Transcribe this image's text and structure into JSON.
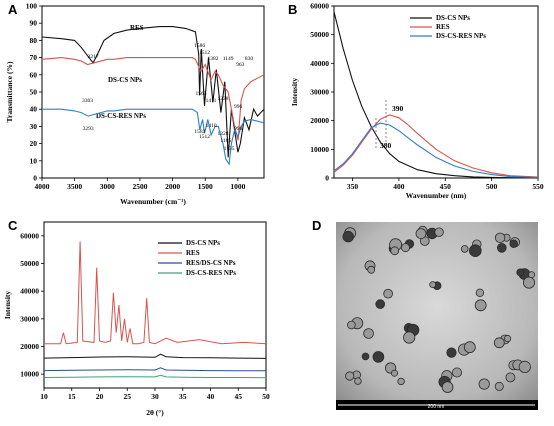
{
  "panels": {
    "A": {
      "letter": "A",
      "xlabel": "Wavenumber (cm⁻¹)",
      "ylabel": "Transmittance (%)",
      "xticks": [
        "4000",
        "3500",
        "3000",
        "2500",
        "2000",
        "1500",
        "1000"
      ],
      "yticks": [
        "0",
        "10",
        "20",
        "30",
        "40",
        "50",
        "60",
        "70",
        "80",
        "90",
        "100"
      ],
      "series_labels": [
        "RES",
        "DS-CS NPs",
        "DS-CS-RES NPs"
      ],
      "peak_labels": [
        "3217",
        "1586",
        "1512",
        "1382",
        "1149",
        "963",
        "830",
        "3303",
        "1565",
        "1411",
        "1228",
        "996",
        "3293",
        "1583",
        "1512",
        "1410",
        "1228",
        "1135",
        "1185",
        "996"
      ]
    },
    "B": {
      "letter": "B",
      "xlabel": "Wavenumber (nm)",
      "ylabel": "Intensity",
      "xticks": [
        "350",
        "400",
        "450",
        "500",
        "550"
      ],
      "yticks": [
        "0",
        "10000",
        "20000",
        "30000",
        "40000",
        "50000",
        "60000"
      ],
      "legend": [
        "DS-CS NPs",
        "RES",
        "DS-CS-RES NPs"
      ],
      "annotations": [
        "390",
        "380"
      ]
    },
    "C": {
      "letter": "C",
      "xlabel": "2θ (°)",
      "ylabel": "Intensity",
      "xticks": [
        "10",
        "15",
        "20",
        "25",
        "30",
        "35",
        "40",
        "45",
        "50"
      ],
      "yticks": [
        "10000",
        "20000",
        "30000",
        "40000",
        "50000",
        "60000"
      ],
      "legend": [
        "DS-CS NPs",
        "RES",
        "RES/DS-CS NPs",
        "DS-CS-RES NPs"
      ]
    },
    "D": {
      "letter": "D",
      "scale_bar": "200 nm"
    }
  },
  "colors": {
    "black": "#111111",
    "red": "#d9534f",
    "blue": "#2f7fc1",
    "green": "#3aa37a",
    "navy": "#2a4f8f"
  },
  "chart_data": [
    {
      "type": "line",
      "title": "",
      "xlabel": "Wavenumber (cm⁻¹)",
      "ylabel": "Transmittance (%)",
      "xlim": [
        4000,
        600
      ],
      "ylim": [
        0,
        100
      ],
      "series": [
        {
          "name": "RES",
          "x": [
            4000,
            3700,
            3500,
            3400,
            3300,
            3217,
            3150,
            3050,
            2900,
            2700,
            2500,
            2200,
            2000,
            1800,
            1650,
            1600,
            1586,
            1560,
            1512,
            1450,
            1382,
            1330,
            1260,
            1200,
            1149,
            1100,
            1000,
            963,
            900,
            830,
            760,
            700,
            650,
            600
          ],
          "y": [
            82,
            81,
            80,
            76,
            71,
            67,
            72,
            80,
            84,
            86,
            87,
            88,
            88,
            87,
            85,
            72,
            48,
            75,
            42,
            70,
            44,
            63,
            38,
            56,
            12,
            40,
            15,
            20,
            35,
            28,
            40,
            36,
            38,
            40
          ]
        },
        {
          "name": "DS-CS NPs",
          "x": [
            4000,
            3700,
            3500,
            3400,
            3303,
            3200,
            3000,
            2900,
            2700,
            2500,
            2200,
            2000,
            1800,
            1700,
            1650,
            1565,
            1500,
            1411,
            1350,
            1300,
            1228,
            1150,
            1100,
            1050,
            996,
            950,
            900,
            800,
            700,
            600
          ],
          "y": [
            69,
            70,
            69,
            68,
            66,
            67,
            69,
            69,
            70,
            70,
            70,
            70,
            70,
            70,
            69,
            62,
            66,
            57,
            62,
            60,
            54,
            50,
            40,
            30,
            22,
            45,
            52,
            56,
            58,
            60
          ]
        },
        {
          "name": "DS-CS-RES NPs",
          "x": [
            4000,
            3700,
            3500,
            3400,
            3293,
            3200,
            3000,
            2900,
            2700,
            2500,
            2200,
            2000,
            1800,
            1700,
            1620,
            1583,
            1540,
            1512,
            1460,
            1410,
            1350,
            1300,
            1228,
            1185,
            1135,
            1100,
            1050,
            996,
            950,
            900,
            800,
            700,
            600
          ],
          "y": [
            40,
            40,
            39,
            38,
            36,
            37,
            39,
            39,
            40,
            40,
            40,
            40,
            40,
            40,
            38,
            28,
            34,
            26,
            34,
            25,
            30,
            30,
            20,
            11,
            8,
            20,
            28,
            24,
            30,
            33,
            34,
            33,
            32
          ]
        }
      ]
    },
    {
      "type": "line",
      "title": "",
      "xlabel": "Wavenumber (nm)",
      "ylabel": "Intensity",
      "xlim": [
        330,
        550
      ],
      "ylim": [
        0,
        60000
      ],
      "legend": "top-right",
      "series": [
        {
          "name": "DS-CS NPs",
          "x": [
            330,
            340,
            350,
            360,
            370,
            380,
            390,
            400,
            420,
            440,
            460,
            480,
            500,
            520,
            550
          ],
          "y": [
            58000,
            45000,
            34000,
            25000,
            18000,
            12500,
            8500,
            5800,
            2900,
            1500,
            800,
            400,
            200,
            100,
            50
          ]
        },
        {
          "name": "RES",
          "x": [
            330,
            340,
            350,
            360,
            370,
            380,
            390,
            400,
            410,
            420,
            440,
            460,
            480,
            500,
            520,
            550
          ],
          "y": [
            2000,
            4500,
            8000,
            12500,
            17000,
            20500,
            22000,
            21000,
            18500,
            15500,
            10000,
            6000,
            3500,
            1800,
            800,
            300
          ]
        },
        {
          "name": "DS-CS-RES NPs",
          "x": [
            330,
            340,
            350,
            360,
            370,
            380,
            390,
            400,
            410,
            420,
            440,
            460,
            480,
            500,
            520,
            550
          ],
          "y": [
            2500,
            5000,
            8500,
            13000,
            17500,
            19200,
            18500,
            16500,
            14000,
            11500,
            7200,
            4200,
            2300,
            1200,
            500,
            200
          ]
        }
      ],
      "annotations": [
        {
          "text": "390",
          "x": 390
        },
        {
          "text": "380",
          "x": 380
        }
      ]
    },
    {
      "type": "line",
      "title": "",
      "xlabel": "2θ (°)",
      "ylabel": "Intensity",
      "xlim": [
        10,
        50
      ],
      "ylim": [
        5000,
        65000
      ],
      "legend": "top-right",
      "series": [
        {
          "name": "DS-CS NPs",
          "x": [
            10,
            15,
            20,
            25,
            30,
            31,
            32,
            35,
            40,
            45,
            50
          ],
          "y": [
            15800,
            16000,
            16200,
            16300,
            16100,
            17200,
            16300,
            16000,
            15900,
            15800,
            15700
          ]
        },
        {
          "name": "RES",
          "x": [
            10,
            13,
            13.5,
            14,
            16,
            16.5,
            17,
            19,
            19.5,
            20,
            21,
            22,
            22.5,
            23,
            23.5,
            24,
            24.5,
            25,
            25.5,
            26,
            27,
            28,
            28.5,
            29,
            30,
            32,
            34,
            38,
            42,
            46,
            50
          ],
          "y": [
            21000,
            21000,
            25000,
            21000,
            21500,
            58000,
            22000,
            21500,
            48500,
            22000,
            21500,
            22000,
            39500,
            25000,
            35000,
            22000,
            30000,
            21500,
            26500,
            21000,
            21000,
            21500,
            37500,
            21500,
            21000,
            23000,
            21500,
            22500,
            21000,
            21500,
            21000
          ]
        },
        {
          "name": "RES/DS-CS NPs",
          "x": [
            10,
            15,
            20,
            25,
            30,
            31,
            32,
            35,
            40,
            45,
            50
          ],
          "y": [
            11300,
            11400,
            11500,
            11600,
            11500,
            12300,
            11500,
            11400,
            11300,
            11200,
            11200
          ]
        },
        {
          "name": "DS-CS-RES NPs",
          "x": [
            10,
            15,
            20,
            25,
            30,
            31,
            32,
            35,
            40,
            45,
            50
          ],
          "y": [
            8800,
            8900,
            9000,
            9100,
            9000,
            9600,
            9000,
            8900,
            8800,
            8800,
            8700
          ]
        }
      ]
    }
  ]
}
